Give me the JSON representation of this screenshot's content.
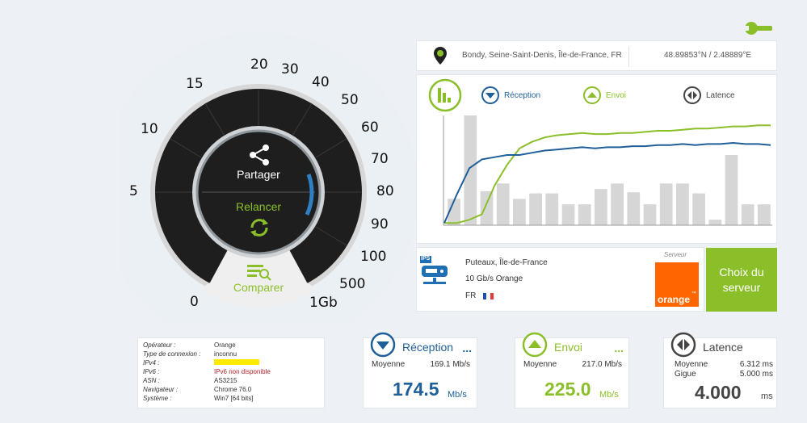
{
  "gauge": {
    "ticks": [
      "0",
      "5",
      "10",
      "15",
      "20",
      "30",
      "40",
      "50",
      "60",
      "70",
      "80",
      "90",
      "100",
      "500",
      "1Gb"
    ],
    "share_label": "Partager",
    "restart_label": "Relancer",
    "compare_label": "Comparer"
  },
  "location": {
    "city": "Bondy, Seine-Saint-Denis, Île-de-France, FR",
    "coords": "48.89853°N / 2.48889°E"
  },
  "graph": {
    "legend": {
      "reception": "Réception",
      "upload": "Envoi",
      "latency": "Latence"
    },
    "bars": [
      0.24,
      1.0,
      0.31,
      0.38,
      0.24,
      0.29,
      0.29,
      0.19,
      0.19,
      0.33,
      0.38,
      0.3,
      0.19,
      0.38,
      0.38,
      0.29,
      0.05,
      0.64,
      0.19,
      0.19
    ],
    "reception_curve": [
      0.02,
      0.28,
      0.52,
      0.6,
      0.62,
      0.64,
      0.64,
      0.66,
      0.68,
      0.69,
      0.7,
      0.71,
      0.7,
      0.71,
      0.71,
      0.72,
      0.72,
      0.73,
      0.73,
      0.74,
      0.73,
      0.74,
      0.74,
      0.75,
      0.74,
      0.74,
      0.73
    ],
    "upload_curve": [
      0.02,
      0.02,
      0.05,
      0.1,
      0.36,
      0.55,
      0.7,
      0.76,
      0.8,
      0.82,
      0.83,
      0.84,
      0.83,
      0.83,
      0.84,
      0.84,
      0.85,
      0.86,
      0.86,
      0.87,
      0.88,
      0.88,
      0.89,
      0.9,
      0.9,
      0.91,
      0.91
    ],
    "colors": {
      "reception": "#1f5f99",
      "upload": "#8bbf2a",
      "bars": "#d6d6d6"
    }
  },
  "isp": {
    "badge": "IPS",
    "city": "Puteaux, Île-de-France",
    "link": "10 Gb/s Orange",
    "country": "FR"
  },
  "server": {
    "caption": "Serveur",
    "logo_text": "orange",
    "logo_tm": "™",
    "button_line1": "Choix du",
    "button_line2": "serveur"
  },
  "info": {
    "rows": [
      {
        "k": "Opérateur :",
        "v": "Orange"
      },
      {
        "k": "Type de connexion :",
        "v": "inconnu"
      },
      {
        "k": "IPv4 :",
        "v": ""
      },
      {
        "k": "IPv6 :",
        "v": "IPv6 non disponible"
      },
      {
        "k": "ASN :",
        "v": "AS3215"
      },
      {
        "k": "Navigateur :",
        "v": "Chrome 76.0"
      },
      {
        "k": "Système :",
        "v": "Win7 [64 bits]"
      }
    ]
  },
  "results": {
    "reception": {
      "title": "Réception",
      "more": "...",
      "avg_label": "Moyenne",
      "avg_value": "169.1 Mb/s",
      "value": "174.5",
      "unit": "Mb/s",
      "color": "#1f5f99"
    },
    "upload": {
      "title": "Envoi",
      "more": "...",
      "avg_label": "Moyenne",
      "avg_value": "217.0 Mb/s",
      "value": "225.0",
      "unit": "Mb/s",
      "color": "#8bbf2a"
    },
    "latency": {
      "title": "Latence",
      "avg_label": "Moyenne",
      "avg_value": "6.312 ms",
      "jitter_label": "Gigue",
      "jitter_value": "5.000 ms",
      "value": "4.000",
      "unit": "ms",
      "color": "#444444"
    }
  }
}
